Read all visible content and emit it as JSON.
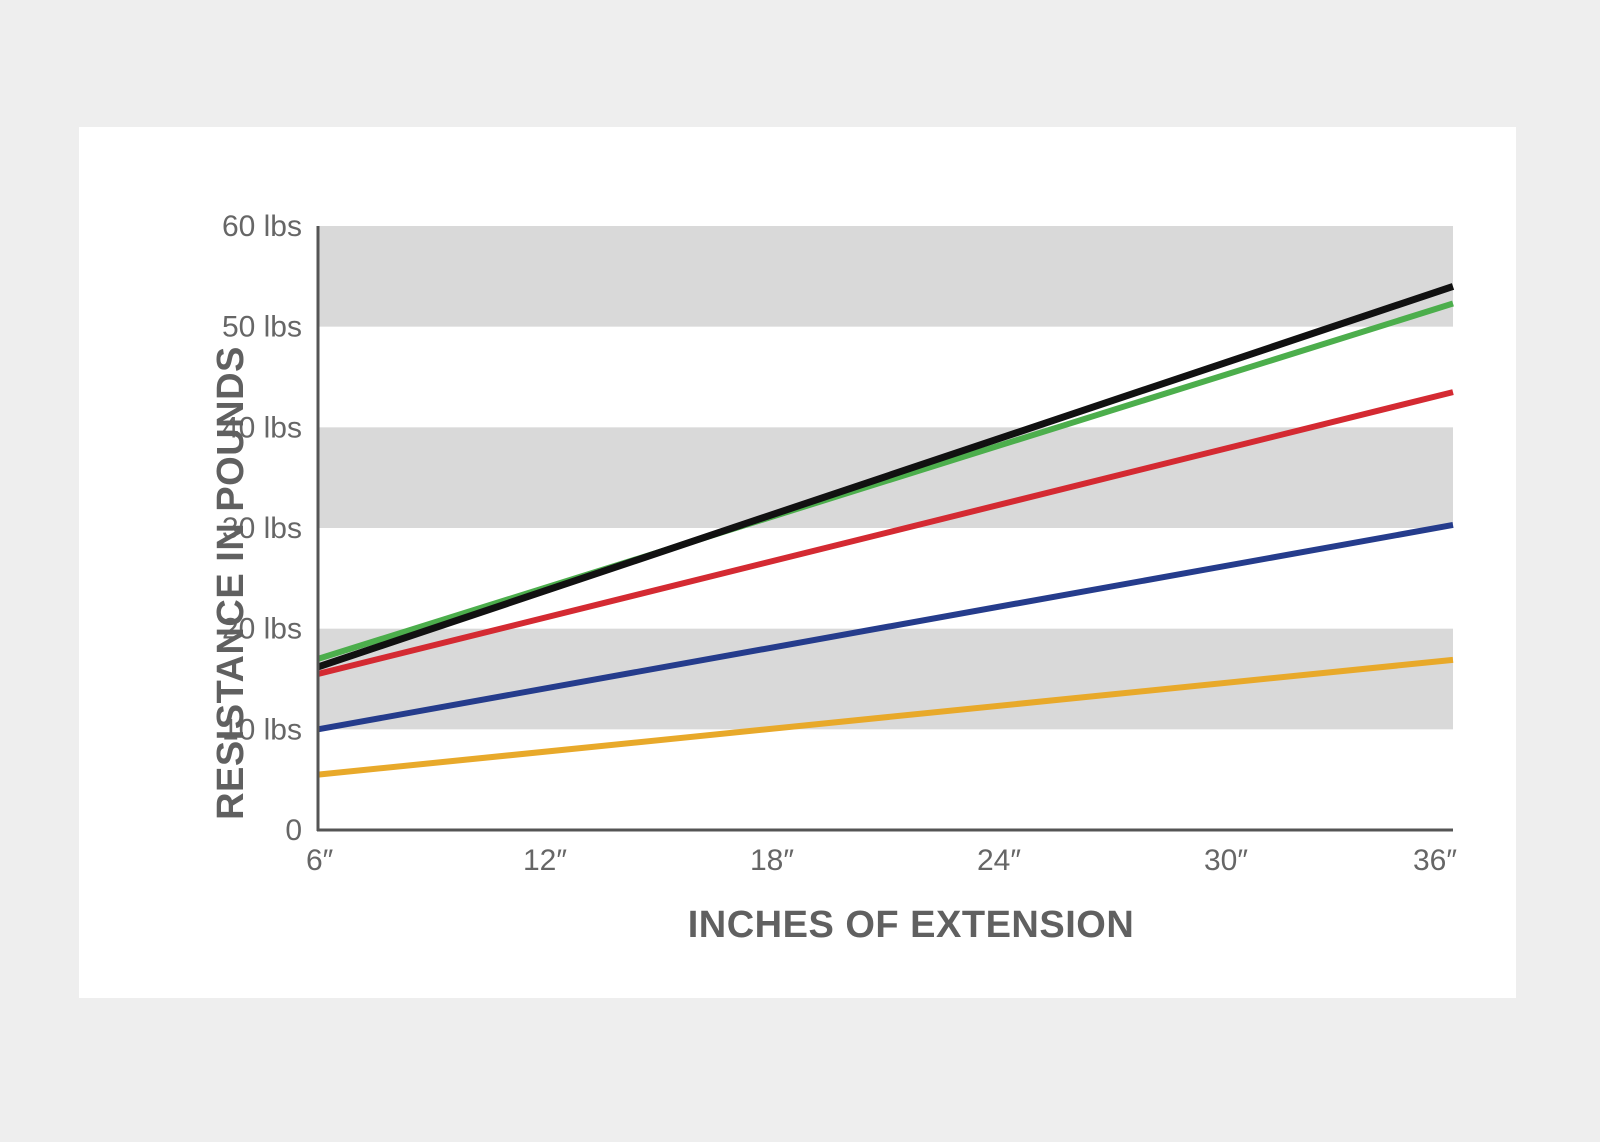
{
  "chart_data": {
    "type": "line",
    "title": "",
    "xlabel": "INCHES OF EXTENSION",
    "ylabel": "RESISTANCE IN POUNDS",
    "x": [
      6,
      36
    ],
    "x_ticks": [
      6,
      12,
      18,
      24,
      30,
      36
    ],
    "x_tick_labels": [
      "6″",
      "12″",
      "18″",
      "24″",
      "30″",
      "36″"
    ],
    "y_ticks": [
      0,
      10,
      20,
      30,
      40,
      50,
      60
    ],
    "y_tick_labels": [
      "0",
      "10 lbs",
      "20 lbs",
      "30 lbs",
      "40 lbs",
      "50 lbs",
      "60 lbs"
    ],
    "xlim": [
      6,
      36
    ],
    "ylim": [
      0,
      60
    ],
    "grid": "alternating horizontal bands",
    "band_color": "#d9d9d9",
    "series": [
      {
        "color": "#e8a92a",
        "values": [
          5.5,
          16.9
        ]
      },
      {
        "color": "#253c8c",
        "values": [
          10.0,
          30.3
        ]
      },
      {
        "color": "#d42a32",
        "values": [
          15.5,
          43.5
        ]
      },
      {
        "color": "#4cae4c",
        "values": [
          17.0,
          52.3
        ]
      },
      {
        "color": "#111111",
        "values": [
          16.2,
          54.0
        ]
      }
    ]
  }
}
